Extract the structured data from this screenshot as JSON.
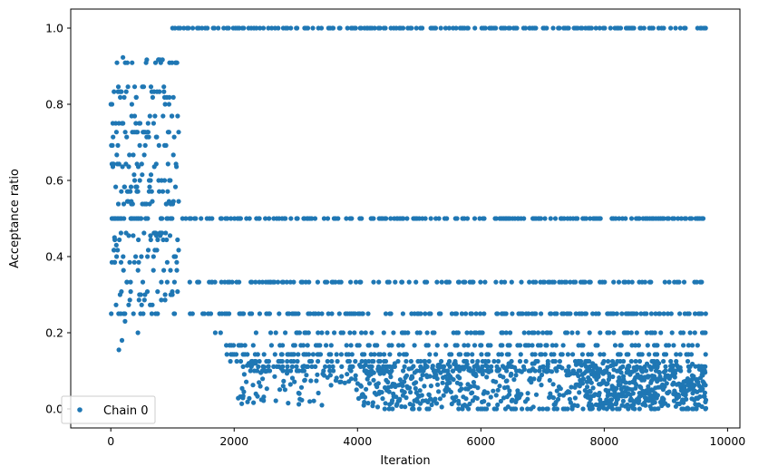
{
  "chart_data": {
    "type": "scatter",
    "xlabel": "Iteration",
    "ylabel": "Acceptance ratio",
    "xlim": [
      -650,
      10200
    ],
    "ylim": [
      -0.05,
      1.05
    ],
    "xticks": [
      0,
      2000,
      4000,
      6000,
      8000,
      10000
    ],
    "xtick_labels": [
      "0",
      "2000",
      "4000",
      "6000",
      "8000",
      "10000"
    ],
    "yticks": [
      0.0,
      0.2,
      0.4,
      0.6,
      0.8,
      1.0
    ],
    "ytick_labels": [
      "0.0",
      "0.2",
      "0.4",
      "0.6",
      "0.8",
      "1.0"
    ],
    "grid": false,
    "legend_position": "lower-left",
    "marker_color": "#1f77b4",
    "series": [
      {
        "name": "Chain 0",
        "description_of_bands": "Acceptance ratio per iteration; early phase (0-1100) spans 0.15-0.92, afterwards concentrates on discrete levels",
        "x_range": [
          0,
          9650
        ],
        "bands": [
          {
            "y": 1.0,
            "x_start": 1000,
            "x_end": 9650
          },
          {
            "y": 0.5,
            "x_start": 0,
            "x_end": 9650
          },
          {
            "y": 0.333,
            "x_start": 1250,
            "x_end": 9650
          },
          {
            "y": 0.25,
            "x_start": 1200,
            "x_end": 9650
          },
          {
            "y": 0.2,
            "x_start": 1650,
            "x_end": 9650
          },
          {
            "y": 0.167,
            "x_start": 1580,
            "x_end": 9650
          },
          {
            "y": 0.143,
            "x_start": 1850,
            "x_end": 9650
          },
          {
            "y": 0.125,
            "x_start": 1900,
            "x_end": 9650
          },
          {
            "y": 0.111,
            "x_start": 2100,
            "x_end": 9650
          },
          {
            "y": 0.1,
            "x_start": 2200,
            "x_end": 9650
          },
          {
            "y": 0.0,
            "x_start": 4200,
            "x_end": 9650
          }
        ]
      }
    ]
  }
}
